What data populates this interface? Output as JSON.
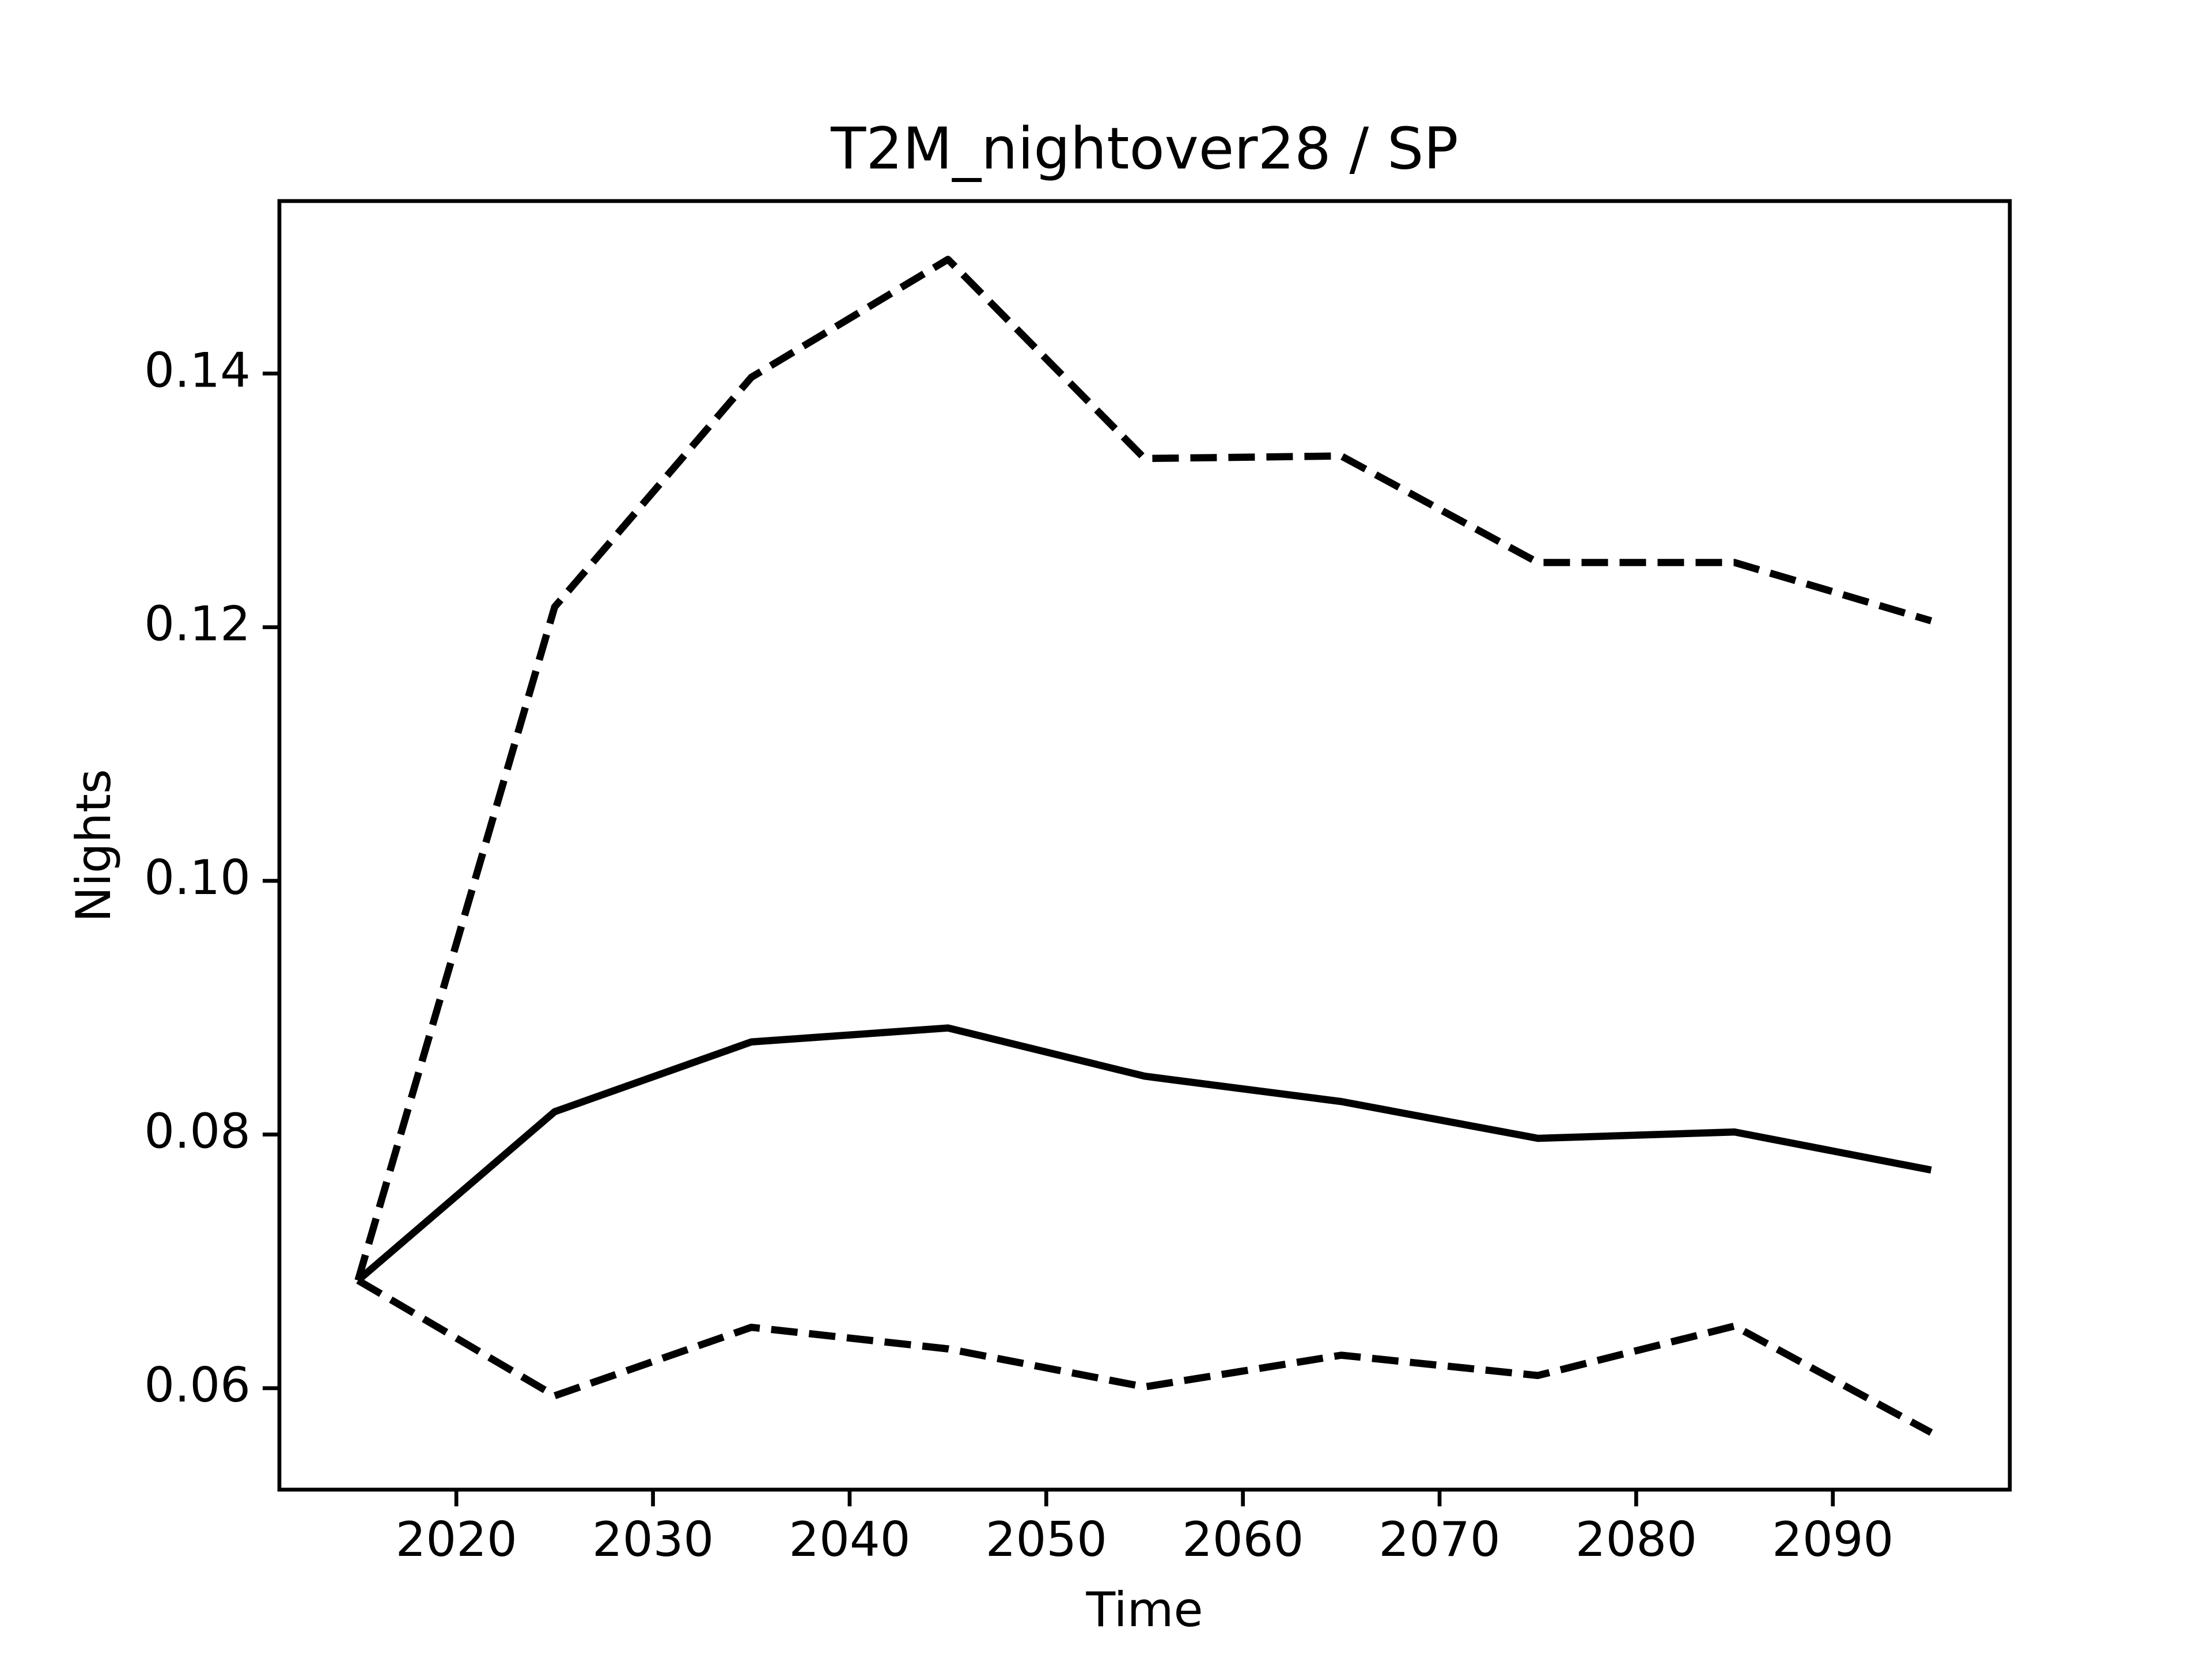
{
  "chart_data": {
    "type": "line",
    "title": "T2M_nightover28 / SP",
    "xlabel": "Time",
    "ylabel": "Nights",
    "x": [
      2015,
      2025,
      2035,
      2045,
      2055,
      2065,
      2075,
      2085,
      2095
    ],
    "series": [
      {
        "color": "#000000",
        "style": "solid",
        "values": [
          0.0685,
          0.0818,
          0.0873,
          0.0884,
          0.0846,
          0.0826,
          0.0797,
          0.0802,
          0.0772
        ]
      },
      {
        "color": "#000000",
        "style": "dashed",
        "values": [
          0.0685,
          0.1216,
          0.1397,
          0.149,
          0.1333,
          0.1335,
          0.1251,
          0.1251,
          0.1205
        ]
      },
      {
        "color": "#000000",
        "style": "dashed",
        "values": [
          0.0685,
          0.0594,
          0.0648,
          0.0631,
          0.0601,
          0.0626,
          0.061,
          0.0649,
          0.0565
        ]
      }
    ],
    "xlim": [
      2011,
      2099
    ],
    "xticks": [
      2020,
      2030,
      2040,
      2050,
      2060,
      2070,
      2080,
      2090
    ],
    "ylim": [
      0.052,
      0.1536
    ],
    "yticks": [
      0.06,
      0.08,
      {
        "value": 0.1,
        "label": "0.10"
      },
      0.12,
      0.14
    ],
    "grid": false
  }
}
